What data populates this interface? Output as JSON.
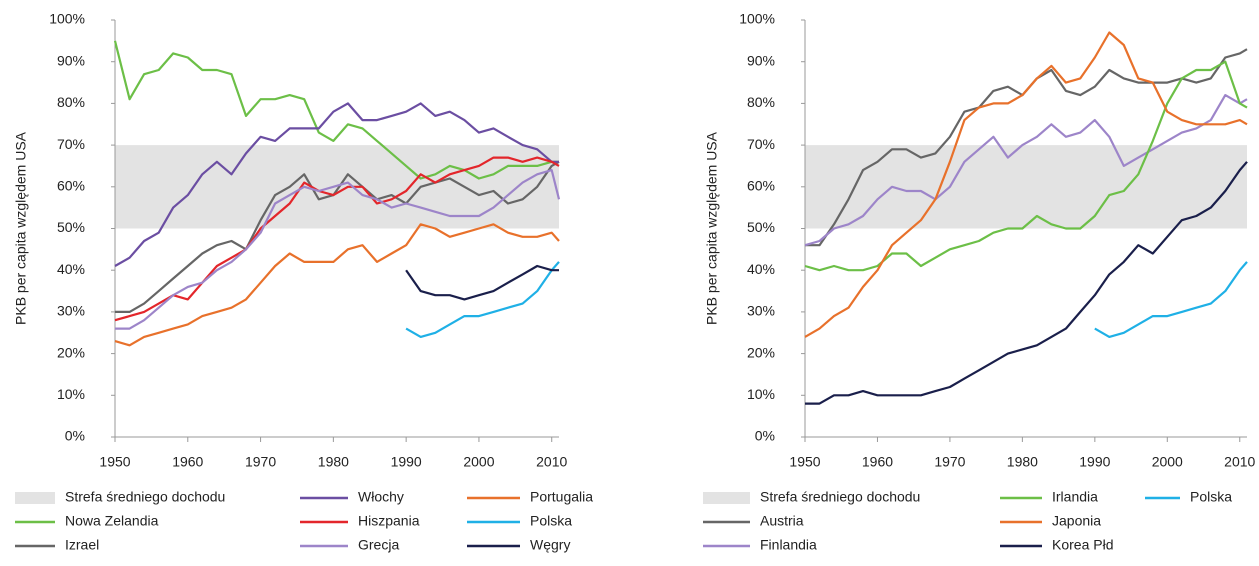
{
  "chart_data": [
    {
      "type": "line",
      "ylabel": "PKB per capita względem USA",
      "x": [
        1950,
        1952,
        1954,
        1956,
        1958,
        1960,
        1962,
        1964,
        1966,
        1968,
        1970,
        1972,
        1974,
        1976,
        1978,
        1980,
        1982,
        1984,
        1986,
        1988,
        1990,
        1992,
        1994,
        1996,
        1998,
        2000,
        2002,
        2004,
        2006,
        2008,
        2010,
        2011
      ],
      "xlim": [
        1950,
        2011
      ],
      "xticks": [
        1950,
        1960,
        1970,
        1980,
        1990,
        2000,
        2010
      ],
      "ylim": [
        0,
        100
      ],
      "yticks": [
        {
          "value": 0,
          "label": "0%"
        },
        {
          "value": 10,
          "label": "10%"
        },
        {
          "value": 20,
          "label": "20%"
        },
        {
          "value": 30,
          "label": "30%"
        },
        {
          "value": 40,
          "label": "40%"
        },
        {
          "value": 50,
          "label": "50%"
        },
        {
          "value": 60,
          "label": "60%"
        },
        {
          "value": 70,
          "label": "70%"
        },
        {
          "value": 80,
          "label": "80%"
        },
        {
          "value": 90,
          "label": "90%"
        },
        {
          "value": 100,
          "label": "100%"
        }
      ],
      "band": {
        "name": "Strefa średniego dochodu",
        "range": [
          50,
          70
        ],
        "color": "#e3e3e3"
      },
      "series": [
        {
          "name": "Nowa Zelandia",
          "color": "#6cbf47",
          "values": [
            95,
            81,
            87,
            88,
            92,
            91,
            88,
            88,
            87,
            77,
            81,
            81,
            82,
            81,
            73,
            71,
            75,
            74,
            71,
            68,
            65,
            62,
            63,
            65,
            64,
            62,
            63,
            65,
            65,
            65,
            66,
            66
          ]
        },
        {
          "name": "Izrael",
          "color": "#666666",
          "values": [
            30,
            30,
            32,
            35,
            38,
            41,
            44,
            46,
            47,
            45,
            52,
            58,
            60,
            63,
            57,
            58,
            63,
            60,
            57,
            58,
            56,
            60,
            61,
            62,
            60,
            58,
            59,
            56,
            57,
            60,
            65,
            66
          ]
        },
        {
          "name": "Włochy",
          "color": "#6b4ea2",
          "values": [
            41,
            43,
            47,
            49,
            55,
            58,
            63,
            66,
            63,
            68,
            72,
            71,
            74,
            74,
            74,
            78,
            80,
            76,
            76,
            77,
            78,
            80,
            77,
            78,
            76,
            73,
            74,
            72,
            70,
            69,
            66,
            66
          ]
        },
        {
          "name": "Hiszpania",
          "color": "#e3262b",
          "values": [
            28,
            29,
            30,
            32,
            34,
            33,
            37,
            41,
            43,
            45,
            50,
            53,
            56,
            61,
            59,
            58,
            60,
            60,
            56,
            57,
            59,
            63,
            61,
            63,
            64,
            65,
            67,
            67,
            66,
            67,
            66,
            65
          ]
        },
        {
          "name": "Grecja",
          "color": "#9d85c9",
          "values": [
            26,
            26,
            28,
            31,
            34,
            36,
            37,
            40,
            42,
            45,
            49,
            56,
            58,
            60,
            59,
            60,
            61,
            58,
            57,
            55,
            56,
            55,
            54,
            53,
            53,
            53,
            55,
            58,
            61,
            63,
            64,
            57
          ]
        },
        {
          "name": "Portugalia",
          "color": "#e8712b",
          "values": [
            23,
            22,
            24,
            25,
            26,
            27,
            29,
            30,
            31,
            33,
            37,
            41,
            44,
            42,
            42,
            42,
            45,
            46,
            42,
            44,
            46,
            51,
            50,
            48,
            49,
            50,
            51,
            49,
            48,
            48,
            49,
            47
          ]
        },
        {
          "name": "Polska",
          "color": "#1fb0e6",
          "values": [
            null,
            null,
            null,
            null,
            null,
            null,
            null,
            null,
            null,
            null,
            null,
            null,
            null,
            null,
            null,
            null,
            null,
            null,
            null,
            null,
            26,
            24,
            25,
            27,
            29,
            29,
            30,
            31,
            32,
            35,
            40,
            42
          ]
        },
        {
          "name": "Węgry",
          "color": "#1a1f4b",
          "values": [
            null,
            null,
            null,
            null,
            null,
            null,
            null,
            null,
            null,
            null,
            null,
            null,
            null,
            null,
            null,
            null,
            null,
            null,
            null,
            null,
            40,
            35,
            34,
            34,
            33,
            34,
            35,
            37,
            39,
            41,
            40,
            40
          ]
        }
      ]
    },
    {
      "type": "line",
      "ylabel": "PKB per capita względem USA",
      "x": [
        1950,
        1952,
        1954,
        1956,
        1958,
        1960,
        1962,
        1964,
        1966,
        1968,
        1970,
        1972,
        1974,
        1976,
        1978,
        1980,
        1982,
        1984,
        1986,
        1988,
        1990,
        1992,
        1994,
        1996,
        1998,
        2000,
        2002,
        2004,
        2006,
        2008,
        2010,
        2011
      ],
      "xlim": [
        1950,
        2011
      ],
      "xticks": [
        1950,
        1960,
        1970,
        1980,
        1990,
        2000,
        2010
      ],
      "ylim": [
        0,
        100
      ],
      "yticks": [
        {
          "value": 0,
          "label": "0%"
        },
        {
          "value": 10,
          "label": "10%"
        },
        {
          "value": 20,
          "label": "20%"
        },
        {
          "value": 30,
          "label": "30%"
        },
        {
          "value": 40,
          "label": "40%"
        },
        {
          "value": 50,
          "label": "50%"
        },
        {
          "value": 60,
          "label": "60%"
        },
        {
          "value": 70,
          "label": "70%"
        },
        {
          "value": 80,
          "label": "80%"
        },
        {
          "value": 90,
          "label": "90%"
        },
        {
          "value": 100,
          "label": "100%"
        }
      ],
      "band": {
        "name": "Strefa średniego dochodu",
        "range": [
          50,
          70
        ],
        "color": "#e3e3e3"
      },
      "series": [
        {
          "name": "Austria",
          "color": "#666666",
          "values": [
            46,
            46,
            51,
            57,
            64,
            66,
            69,
            69,
            67,
            68,
            72,
            78,
            79,
            83,
            84,
            82,
            86,
            88,
            83,
            82,
            84,
            88,
            86,
            85,
            85,
            85,
            86,
            85,
            86,
            91,
            92,
            93
          ]
        },
        {
          "name": "Finlandia",
          "color": "#9d85c9",
          "values": [
            46,
            47,
            50,
            51,
            53,
            57,
            60,
            59,
            59,
            57,
            60,
            66,
            69,
            72,
            67,
            70,
            72,
            75,
            72,
            73,
            76,
            72,
            65,
            67,
            69,
            71,
            73,
            74,
            76,
            82,
            80,
            81
          ]
        },
        {
          "name": "Irlandia",
          "color": "#6cbf47",
          "values": [
            41,
            40,
            41,
            40,
            40,
            41,
            44,
            44,
            41,
            43,
            45,
            46,
            47,
            49,
            50,
            50,
            53,
            51,
            50,
            50,
            53,
            58,
            59,
            63,
            71,
            80,
            86,
            88,
            88,
            90,
            80,
            79
          ]
        },
        {
          "name": "Japonia",
          "color": "#e8712b",
          "values": [
            24,
            26,
            29,
            31,
            36,
            40,
            46,
            49,
            52,
            57,
            66,
            76,
            79,
            80,
            80,
            82,
            86,
            89,
            85,
            86,
            91,
            97,
            94,
            86,
            85,
            78,
            76,
            75,
            75,
            75,
            76,
            75
          ]
        },
        {
          "name": "Korea Płd",
          "color": "#1a1f4b",
          "values": [
            8,
            8,
            10,
            10,
            11,
            10,
            10,
            10,
            10,
            11,
            12,
            14,
            16,
            18,
            20,
            21,
            22,
            24,
            26,
            30,
            34,
            39,
            42,
            46,
            44,
            48,
            52,
            53,
            55,
            59,
            64,
            66
          ]
        },
        {
          "name": "Polska",
          "color": "#1fb0e6",
          "values": [
            null,
            null,
            null,
            null,
            null,
            null,
            null,
            null,
            null,
            null,
            null,
            null,
            null,
            null,
            null,
            null,
            null,
            null,
            null,
            null,
            26,
            24,
            25,
            27,
            29,
            29,
            30,
            31,
            32,
            35,
            40,
            42
          ]
        }
      ]
    }
  ]
}
